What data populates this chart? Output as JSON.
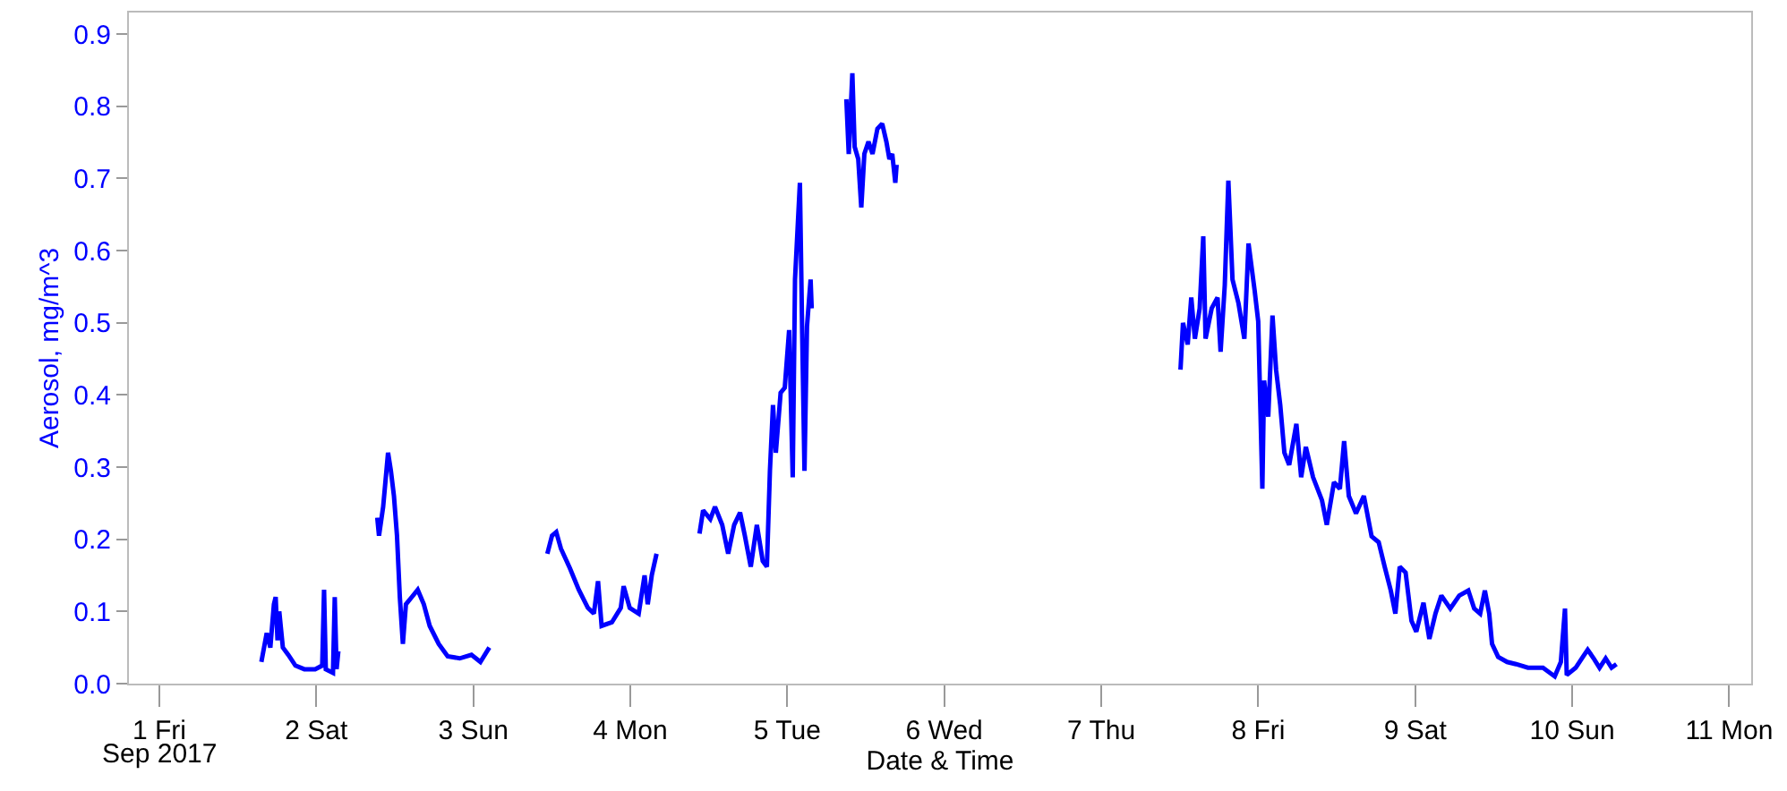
{
  "chart_data": {
    "type": "line",
    "xlabel": "Date & Time",
    "ylabel": "Aerosol, mg/m^3",
    "annotations": [
      "Sep 2017"
    ],
    "x": [
      "2017-09-01T15:36",
      "2017-09-01T16:25",
      "2017-09-01T16:58",
      "2017-09-01T17:31",
      "2017-09-01T17:47",
      "2017-09-01T18:04",
      "2017-09-01T18:20",
      "2017-09-01T18:53",
      "2017-09-01T19:42",
      "2017-09-01T20:48",
      "2017-09-01T22:10",
      "2017-09-01T23:49",
      "2017-09-02T00:54",
      "2017-09-02T01:11",
      "2017-09-02T01:27",
      "2017-09-02T02:33",
      "2017-09-02T02:49",
      "2017-09-02T03:06",
      "2017-09-02T03:22",
      "2017-09-02T06:00",
      "2017-09-02T09:19",
      "2017-09-02T09:35",
      "2017-09-02T10:13",
      "2017-09-02T10:58",
      "2017-09-02T11:24",
      "2017-09-02T11:52",
      "2017-09-02T12:20",
      "2017-09-02T12:46",
      "2017-09-02T13:14",
      "2017-09-02T13:42",
      "2017-09-02T14:36",
      "2017-09-02T15:30",
      "2017-09-02T16:26",
      "2017-09-02T17:20",
      "2017-09-02T18:43",
      "2017-09-02T20:05",
      "2017-09-02T21:55",
      "2017-09-02T23:43",
      "2017-09-03T01:05",
      "2017-09-03T02:27",
      "2017-09-03T06:00",
      "2017-09-03T11:19",
      "2017-09-03T12:02",
      "2017-09-03T12:41",
      "2017-09-03T13:24",
      "2017-09-03T14:46",
      "2017-09-03T16:08",
      "2017-09-03T17:31",
      "2017-09-03T18:26",
      "2017-09-03T19:04",
      "2017-09-03T19:37",
      "2017-09-03T21:11",
      "2017-09-03T22:33",
      "2017-09-03T22:59",
      "2017-09-03T23:55",
      "2017-09-04T01:17",
      "2017-09-04T02:11",
      "2017-09-04T02:40",
      "2017-09-04T03:17",
      "2017-09-04T04:01",
      "2017-09-04T07:00",
      "2017-09-04T10:35",
      "2017-09-04T11:08",
      "2017-09-04T12:14",
      "2017-09-04T12:57",
      "2017-09-04T14:03",
      "2017-09-04T14:58",
      "2017-09-04T15:53",
      "2017-09-04T16:47",
      "2017-09-04T17:31",
      "2017-09-04T18:25",
      "2017-09-04T19:21",
      "2017-09-04T20:15",
      "2017-09-04T20:53",
      "2017-09-04T21:21",
      "2017-09-04T21:49",
      "2017-09-04T22:15",
      "2017-09-04T22:59",
      "2017-09-04T23:37",
      "2017-09-05T00:17",
      "2017-09-05T00:50",
      "2017-09-05T01:11",
      "2017-09-05T01:56",
      "2017-09-05T02:17",
      "2017-09-05T02:38",
      "2017-09-05T03:01",
      "2017-09-05T03:34",
      "2017-09-05T03:44",
      "2017-09-05T06:00",
      "2017-09-05T09:02",
      "2017-09-05T09:24",
      "2017-09-05T09:57",
      "2017-09-05T10:18",
      "2017-09-05T10:51",
      "2017-09-05T11:19",
      "2017-09-05T11:47",
      "2017-09-05T12:25",
      "2017-09-05T13:02",
      "2017-09-05T13:47",
      "2017-09-05T14:31",
      "2017-09-05T15:09",
      "2017-09-05T15:37",
      "2017-09-05T16:03",
      "2017-09-05T16:31",
      "2017-09-05T16:43",
      "2017-09-06T12:00",
      "2017-09-07T12:07",
      "2017-09-07T12:30",
      "2017-09-07T13:13",
      "2017-09-07T13:46",
      "2017-09-07T14:19",
      "2017-09-07T15:03",
      "2017-09-07T15:36",
      "2017-09-07T15:57",
      "2017-09-07T16:53",
      "2017-09-07T17:47",
      "2017-09-07T18:15",
      "2017-09-07T18:53",
      "2017-09-07T19:26",
      "2017-09-07T20:04",
      "2017-09-07T20:59",
      "2017-09-07T21:53",
      "2017-09-07T22:31",
      "2017-09-07T23:27",
      "2017-09-08T00:00",
      "2017-09-08T00:38",
      "2017-09-08T00:54",
      "2017-09-08T01:32",
      "2017-09-08T02:11",
      "2017-09-08T02:44",
      "2017-09-08T03:22",
      "2017-09-08T04:00",
      "2017-09-08T04:44",
      "2017-09-08T05:50",
      "2017-09-08T06:34",
      "2017-09-08T07:17",
      "2017-09-08T08:23",
      "2017-09-08T09:45",
      "2017-09-08T10:29",
      "2017-09-08T11:35",
      "2017-09-08T12:29",
      "2017-09-08T13:08",
      "2017-09-08T13:51",
      "2017-09-08T14:57",
      "2017-09-08T16:09",
      "2017-09-08T17:20",
      "2017-09-08T18:25",
      "2017-09-08T19:20",
      "2017-09-08T20:16",
      "2017-09-08T20:58",
      "2017-09-08T21:38",
      "2017-09-08T22:32",
      "2017-09-08T23:26",
      "2017-09-09T00:10",
      "2017-09-09T01:16",
      "2017-09-09T02:10",
      "2017-09-09T03:06",
      "2017-09-09T04:00",
      "2017-09-09T05:22",
      "2017-09-09T06:44",
      "2017-09-09T08:07",
      "2017-09-09T09:01",
      "2017-09-09T09:56",
      "2017-09-09T10:39",
      "2017-09-09T11:19",
      "2017-09-09T11:45",
      "2017-09-09T12:41",
      "2017-09-09T14:03",
      "2017-09-09T15:25",
      "2017-09-09T17:14",
      "2017-09-09T19:32",
      "2017-09-09T21:20",
      "2017-09-09T22:16",
      "2017-09-09T22:54",
      "2017-09-09T23:10",
      "2017-09-10T00:32",
      "2017-09-10T01:38",
      "2017-09-10T02:22",
      "2017-09-10T03:17",
      "2017-09-10T04:11",
      "2017-09-10T05:07",
      "2017-09-10T06:01",
      "2017-09-10T06:46"
    ],
    "series": [
      {
        "color": "#0000ff",
        "values": [
          0.03,
          0.07,
          0.05,
          0.11,
          0.12,
          0.06,
          0.1,
          0.05,
          0.04,
          0.025,
          0.02,
          0.02,
          0.025,
          0.13,
          0.02,
          0.015,
          0.12,
          0.02,
          0.045,
          null,
          0.23,
          0.205,
          0.245,
          0.32,
          0.295,
          0.26,
          0.205,
          0.12,
          0.055,
          0.11,
          0.12,
          0.13,
          0.11,
          0.08,
          0.055,
          0.038,
          0.035,
          0.04,
          0.03,
          0.05,
          null,
          0.18,
          0.205,
          0.21,
          0.187,
          0.16,
          0.13,
          0.105,
          0.097,
          0.142,
          0.08,
          0.085,
          0.105,
          0.135,
          0.105,
          0.097,
          0.15,
          0.11,
          0.15,
          0.18,
          null,
          0.208,
          0.24,
          0.228,
          0.245,
          0.22,
          0.18,
          0.22,
          0.237,
          0.205,
          0.162,
          0.22,
          0.17,
          0.162,
          0.295,
          0.386,
          0.32,
          0.403,
          0.41,
          0.49,
          0.286,
          0.56,
          0.694,
          0.485,
          0.295,
          0.495,
          0.56,
          0.52,
          null,
          0.81,
          0.734,
          0.846,
          0.744,
          0.727,
          0.66,
          0.734,
          0.751,
          0.734,
          0.769,
          0.776,
          0.751,
          0.727,
          0.734,
          0.694,
          0.719,
          null,
          0.435,
          0.5,
          0.47,
          0.535,
          0.478,
          0.52,
          0.62,
          0.478,
          0.52,
          0.535,
          0.46,
          0.552,
          0.697,
          0.56,
          0.527,
          0.478,
          0.61,
          0.545,
          0.502,
          0.27,
          0.42,
          0.37,
          0.51,
          0.435,
          0.386,
          0.32,
          0.303,
          0.36,
          0.286,
          0.328,
          0.286,
          0.254,
          0.22,
          0.279,
          0.27,
          0.336,
          0.26,
          0.236,
          0.26,
          0.204,
          0.196,
          0.162,
          0.129,
          0.097,
          0.162,
          0.154,
          0.087,
          0.072,
          0.112,
          0.062,
          0.097,
          0.122,
          0.104,
          0.122,
          0.129,
          0.104,
          0.097,
          0.129,
          0.097,
          0.055,
          0.037,
          0.03,
          0.027,
          0.022,
          0.022,
          0.01,
          0.03,
          0.104,
          0.012,
          0.022,
          0.037,
          0.047,
          0.035,
          0.022,
          0.035,
          0.022,
          0.027
        ]
      }
    ],
    "xlim": [
      "2017-08-31T19:21",
      "2017-09-11T03:22"
    ],
    "xticks": [
      {
        "value": "2017-09-01",
        "label": "1 Fri"
      },
      {
        "value": "2017-09-02",
        "label": "2 Sat"
      },
      {
        "value": "2017-09-03",
        "label": "3 Sun"
      },
      {
        "value": "2017-09-04",
        "label": "4 Mon"
      },
      {
        "value": "2017-09-05",
        "label": "5 Tue"
      },
      {
        "value": "2017-09-06",
        "label": "6 Wed"
      },
      {
        "value": "2017-09-07",
        "label": "7 Thu"
      },
      {
        "value": "2017-09-08",
        "label": "8 Fri"
      },
      {
        "value": "2017-09-09",
        "label": "9 Sat"
      },
      {
        "value": "2017-09-10",
        "label": "10 Sun"
      },
      {
        "value": "2017-09-11",
        "label": "11 Mon"
      }
    ],
    "ylim": [
      0,
      0.93
    ],
    "yticks": [
      {
        "value": 0,
        "label": "0.0"
      },
      0.1,
      0.2,
      0.3,
      0.4,
      0.5,
      0.6,
      0.7,
      0.8,
      0.9
    ],
    "grid": false,
    "marker": "none",
    "line_style": "solid"
  }
}
